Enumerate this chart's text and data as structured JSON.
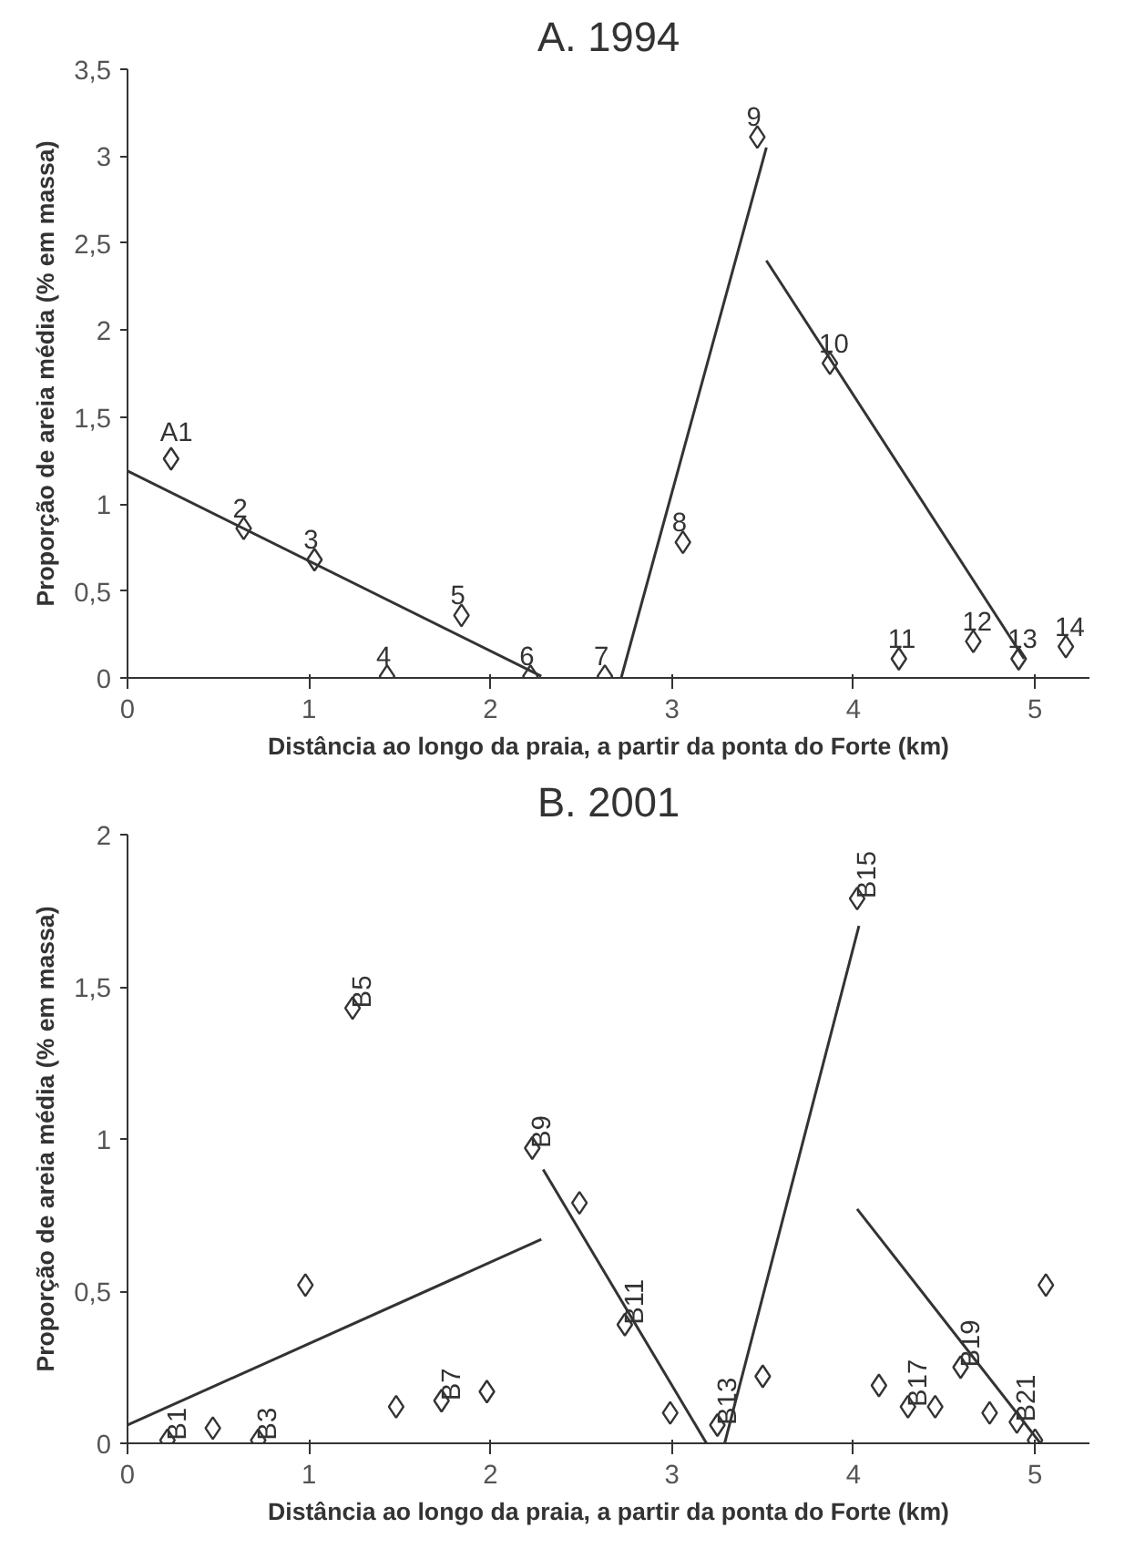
{
  "chart_data": [
    {
      "type": "scatter",
      "title": "A. 1994",
      "xlabel": "Distância ao longo da praia, a partir da ponta do Forte (km)",
      "ylabel": "Proporção de areia média (% em massa)",
      "xlim": [
        0,
        5.3
      ],
      "xticks": [
        0,
        1,
        2,
        3,
        4,
        5
      ],
      "ylim": [
        0,
        3.5
      ],
      "yticks": [
        0,
        {
          "value": 0.5,
          "label": "0,5"
        },
        1,
        {
          "value": 1.5,
          "label": "1,5"
        },
        2,
        {
          "value": 2.5,
          "label": "2,5"
        },
        3,
        {
          "value": 3.5,
          "label": "3,5"
        }
      ],
      "grid": false,
      "marker": "diamond",
      "series": [
        {
          "color": "#333333",
          "x": [
            0.24,
            0.64,
            1.03,
            1.43,
            1.84,
            2.22,
            2.63,
            3.06,
            3.47,
            3.87,
            4.25,
            4.66,
            4.91,
            5.17
          ],
          "values": [
            1.26,
            0.86,
            0.68,
            0.01,
            0.36,
            0.01,
            0.01,
            0.78,
            3.11,
            1.81,
            0.11,
            0.21,
            0.11,
            0.18
          ]
        },
        {
          "type": "line",
          "marker": "none",
          "color": "#333333",
          "x": [
            0,
            2.28
          ],
          "values": [
            1.19,
            0.01
          ]
        },
        {
          "type": "line",
          "marker": "none",
          "color": "#333333",
          "x": [
            2.72,
            3.52
          ],
          "values": [
            0,
            3.05
          ]
        },
        {
          "type": "line",
          "marker": "none",
          "color": "#333333",
          "x": [
            3.52,
            4.94
          ],
          "values": [
            2.4,
            0.11
          ]
        }
      ],
      "annotations": [
        {
          "text": "A1",
          "x": 0.24,
          "y": 1.26
        },
        {
          "text": "2",
          "x": 0.64,
          "y": 0.86
        },
        {
          "text": "3",
          "x": 1.03,
          "y": 0.68
        },
        {
          "text": "4",
          "x": 1.43,
          "y": 0.01
        },
        {
          "text": "5",
          "x": 1.84,
          "y": 0.36
        },
        {
          "text": "6",
          "x": 2.22,
          "y": 0.01
        },
        {
          "text": "7",
          "x": 2.63,
          "y": 0.01
        },
        {
          "text": "8",
          "x": 3.06,
          "y": 0.78
        },
        {
          "text": "9",
          "x": 3.47,
          "y": 3.11
        },
        {
          "text": "10",
          "x": 3.87,
          "y": 1.81
        },
        {
          "text": "11",
          "x": 4.25,
          "y": 0.11
        },
        {
          "text": "12",
          "x": 4.66,
          "y": 0.21
        },
        {
          "text": "13",
          "x": 4.91,
          "y": 0.11
        },
        {
          "text": "14",
          "x": 5.17,
          "y": 0.18
        }
      ]
    },
    {
      "type": "scatter",
      "title": "B. 2001",
      "xlabel": "Distância ao longo da praia, a partir da ponta do Forte (km)",
      "ylabel": "Proporção de areia média (% em massa)",
      "xlim": [
        0,
        5.3
      ],
      "xticks": [
        0,
        1,
        2,
        3,
        4,
        5
      ],
      "ylim": [
        0,
        2
      ],
      "yticks": [
        0,
        {
          "value": 0.5,
          "label": "0,5"
        },
        1,
        {
          "value": 1.5,
          "label": "1,5"
        },
        2
      ],
      "grid": false,
      "marker": "diamond",
      "series": [
        {
          "color": "#333333",
          "x": [
            0.22,
            0.47,
            0.72,
            0.98,
            1.24,
            1.48,
            1.73,
            1.98,
            2.23,
            2.49,
            2.74,
            2.99,
            3.25,
            3.5,
            4.02,
            4.14,
            4.3,
            4.45,
            4.59,
            4.75,
            4.9,
            5.0,
            5.06
          ],
          "values": [
            0.01,
            0.05,
            0.01,
            0.52,
            1.43,
            0.12,
            0.14,
            0.17,
            0.97,
            0.79,
            0.39,
            0.1,
            0.06,
            0.22,
            1.79,
            0.19,
            0.12,
            0.12,
            0.25,
            0.1,
            0.07,
            0.01,
            0.52
          ]
        },
        {
          "type": "line",
          "marker": "none",
          "color": "#333333",
          "x": [
            0,
            2.28
          ],
          "values": [
            0.06,
            0.67
          ]
        },
        {
          "type": "line",
          "marker": "none",
          "color": "#333333",
          "x": [
            2.29,
            3.19
          ],
          "values": [
            0.9,
            0
          ]
        },
        {
          "type": "line",
          "marker": "none",
          "color": "#333333",
          "x": [
            3.29,
            4.03
          ],
          "values": [
            0,
            1.7
          ]
        },
        {
          "type": "line",
          "marker": "none",
          "color": "#333333",
          "x": [
            4.02,
            5.03
          ],
          "values": [
            0.77,
            0
          ]
        }
      ],
      "annotations": [
        {
          "text": "B1",
          "x": 0.22,
          "y": 0.01
        },
        {
          "text": "B3",
          "x": 0.72,
          "y": 0.01
        },
        {
          "text": "B5",
          "x": 1.24,
          "y": 1.43
        },
        {
          "text": "B7",
          "x": 1.73,
          "y": 0.14
        },
        {
          "text": "B9",
          "x": 2.23,
          "y": 0.97
        },
        {
          "text": "B11",
          "x": 2.74,
          "y": 0.39
        },
        {
          "text": "B13",
          "x": 3.25,
          "y": 0.06
        },
        {
          "text": "B15",
          "x": 4.02,
          "y": 1.79
        },
        {
          "text": "B17",
          "x": 4.3,
          "y": 0.12
        },
        {
          "text": "B19",
          "x": 4.59,
          "y": 0.25
        },
        {
          "text": "B21",
          "x": 4.9,
          "y": 0.07
        }
      ]
    }
  ]
}
